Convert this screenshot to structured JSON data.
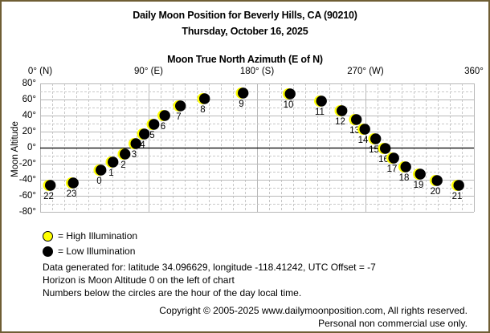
{
  "header": {
    "title": "Daily Moon Position for Beverly Hills, CA (90210)",
    "date": "Thursday, October 16, 2025"
  },
  "colors": {
    "border": "#6f5e34",
    "high_illumination": "#ffff00",
    "low_illumination": "#000000",
    "grid": "#c0c0c0",
    "horizon": "#000000"
  },
  "legend": {
    "high": "= High Illumination",
    "low": "= Low Illumination"
  },
  "info": {
    "line1": "Data generated for: latitude 34.096629, longitude -118.41242, UTC Offset = -7",
    "line2": "Horizon is Moon Altitude 0 on the left of chart",
    "line3": "Numbers below the circles are the hour of the day local time."
  },
  "footer": {
    "copyright": "Copyright © 2005-2025 www.dailymoonposition.com, All rights reserved.",
    "note": "Personal non commercial use only."
  },
  "chart_data": {
    "type": "scatter",
    "title": "Daily Moon Position for Beverly Hills, CA (90210)",
    "subtitle": "Thursday, October 16, 2025",
    "xlabel": "Moon True North Azimuth (E of N)",
    "ylabel": "Moon Altitude",
    "xlim": [
      0,
      360
    ],
    "ylim": [
      -80,
      80
    ],
    "x_ticks": [
      "0° (N)",
      "90° (E)",
      "180° (S)",
      "270° (W)",
      "360°"
    ],
    "x_tick_values": [
      0,
      90,
      180,
      270,
      360
    ],
    "y_ticks": [
      "80°",
      "60°",
      "40°",
      "20°",
      "0°",
      "-20°",
      "-40°",
      "-60°",
      "-80°"
    ],
    "y_tick_values": [
      80,
      60,
      40,
      20,
      0,
      -20,
      -40,
      -60,
      -80
    ],
    "grid": true,
    "horizon_line": 0,
    "legend": [
      "High Illumination",
      "Low Illumination"
    ],
    "legend_position": "bottom-left",
    "points": [
      {
        "hour": 0,
        "azimuth": 49,
        "altitude": -28
      },
      {
        "hour": 1,
        "azimuth": 59,
        "altitude": -18
      },
      {
        "hour": 2,
        "azimuth": 69,
        "altitude": -8
      },
      {
        "hour": 3,
        "azimuth": 78,
        "altitude": 5
      },
      {
        "hour": 4,
        "azimuth": 85,
        "altitude": 17
      },
      {
        "hour": 5,
        "azimuth": 93,
        "altitude": 29
      },
      {
        "hour": 6,
        "azimuth": 102,
        "altitude": 40
      },
      {
        "hour": 7,
        "azimuth": 115,
        "altitude": 52
      },
      {
        "hour": 8,
        "azimuth": 135,
        "altitude": 61
      },
      {
        "hour": 9,
        "azimuth": 167,
        "altitude": 68
      },
      {
        "hour": 10,
        "azimuth": 206,
        "altitude": 67
      },
      {
        "hour": 11,
        "azimuth": 232,
        "altitude": 58
      },
      {
        "hour": 12,
        "azimuth": 249,
        "altitude": 46
      },
      {
        "hour": 13,
        "azimuth": 261,
        "altitude": 35
      },
      {
        "hour": 14,
        "azimuth": 268,
        "altitude": 23
      },
      {
        "hour": 15,
        "azimuth": 277,
        "altitude": 11
      },
      {
        "hour": 16,
        "azimuth": 285,
        "altitude": -1
      },
      {
        "hour": 17,
        "azimuth": 292,
        "altitude": -13
      },
      {
        "hour": 18,
        "azimuth": 302,
        "altitude": -24
      },
      {
        "hour": 19,
        "azimuth": 314,
        "altitude": -33
      },
      {
        "hour": 20,
        "azimuth": 328,
        "altitude": -41
      },
      {
        "hour": 21,
        "azimuth": 346,
        "altitude": -47
      },
      {
        "hour": 22,
        "azimuth": 7,
        "altitude": -47
      },
      {
        "hour": 23,
        "azimuth": 26,
        "altitude": -44
      }
    ],
    "illumination": "low (crescent lit on left)"
  }
}
